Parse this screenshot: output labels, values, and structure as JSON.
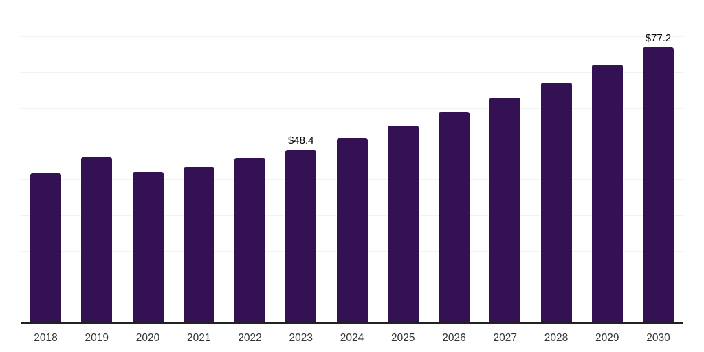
{
  "chart_data": {
    "type": "bar",
    "title": "",
    "xlabel": "",
    "ylabel": "",
    "categories": [
      "2018",
      "2019",
      "2020",
      "2021",
      "2022",
      "2023",
      "2024",
      "2025",
      "2026",
      "2027",
      "2028",
      "2029",
      "2030"
    ],
    "values": [
      41.9,
      46.3,
      42.3,
      43.6,
      46.1,
      48.4,
      51.7,
      55.2,
      59.0,
      63.0,
      67.3,
      72.3,
      77.2
    ],
    "data_labels": [
      "",
      "",
      "",
      "",
      "",
      "$48.4",
      "",
      "",
      "",
      "",
      "",
      "",
      "$77.2"
    ],
    "ylim": [
      0,
      90
    ],
    "grid": {
      "horizontal": true,
      "interval": 10,
      "color": "#f1f1f1"
    },
    "y_tick_labels_visible": false,
    "legend": "none",
    "colors": {
      "bar": "#341152",
      "axis_line": "#222222",
      "gridline": "#f1f1f1",
      "x_tick_label": "#333333",
      "data_label": "#000000",
      "background": "#ffffff"
    }
  }
}
